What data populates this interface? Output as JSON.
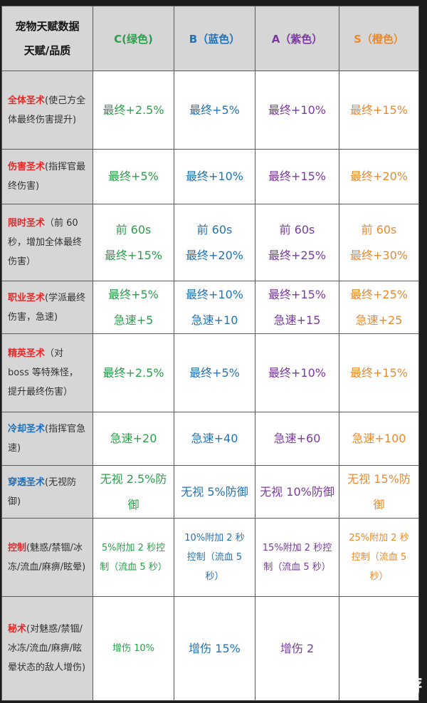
{
  "header": {
    "corner_top": "宠物天赋数据",
    "corner_bottom": "天赋/品质",
    "grades": [
      {
        "label": "C(绿色)"
      },
      {
        "label": "B（蓝色）"
      },
      {
        "label": "A（紫色）"
      },
      {
        "label": "S（橙色）"
      }
    ]
  },
  "rows": [
    {
      "name": "全体圣术",
      "desc": "(使己方全体最终伤害提升)",
      "values": [
        "最终+2.5%",
        "最终+5%",
        "最终+10%",
        "最终+15%"
      ]
    },
    {
      "name": "伤害圣术",
      "desc": "(指挥官最终伤害)",
      "values": [
        "最终+5%",
        "最终+10%",
        "最终+15%",
        "最终+20%"
      ]
    },
    {
      "name": "限时圣术",
      "desc": "（前 60 秒，增加全体最终伤害）",
      "values": [
        {
          "l1": "前 60s",
          "l2": "最终+15%"
        },
        {
          "l1": "前 60s",
          "l2": "最终+20%"
        },
        {
          "l1": "前 60s",
          "l2": "最终+25%"
        },
        {
          "l1": "前 60s",
          "l2": "最终+30%"
        }
      ]
    },
    {
      "name": "职业圣术",
      "desc": "(学派最终伤害，急速)",
      "values": [
        {
          "l1": "最终+5%",
          "l2": "急速+5"
        },
        {
          "l1": "最终+10%",
          "l2": "急速+10"
        },
        {
          "l1": "最终+15%",
          "l2": "急速+15"
        },
        {
          "l1": "最终+25%",
          "l2": "急速+25"
        }
      ]
    },
    {
      "name": "精英圣术",
      "desc": "（对 boss 等特殊怪，提升最终伤害）",
      "values": [
        "最终+2.5%",
        "最终+5%",
        "最终+10%",
        "最终+15%"
      ]
    },
    {
      "name": "冷却圣术",
      "desc": "(指挥官急速)",
      "values": [
        "急速+20",
        "急速+40",
        "急速+60",
        "急速+100"
      ]
    },
    {
      "name": "穿透圣术",
      "desc": "(无视防御)",
      "values": [
        "无视 2.5%防御",
        "无视 5%防御",
        "无视 10%防御",
        "无视 15%防御"
      ]
    },
    {
      "name": "控制",
      "desc": "(魅惑/禁锢/冰冻/流血/麻痹/眩晕)",
      "values": [
        "5%附加 2 秒控制（流血 5 秒）",
        "10%附加 2 秒控制（流血 5 秒）",
        "15%附加 2 秒控制（流血 5 秒）",
        "25%附加 2 秒控制（流血 5 秒）"
      ]
    },
    {
      "name": "秘术",
      "desc": "(对魅惑/禁锢/冰冻/流血/麻痹/眩晕状态的敌人增伤)",
      "values": [
        "增伤 10%",
        "增伤 15%",
        "增伤 2",
        ""
      ]
    }
  ],
  "watermark": "九游"
}
